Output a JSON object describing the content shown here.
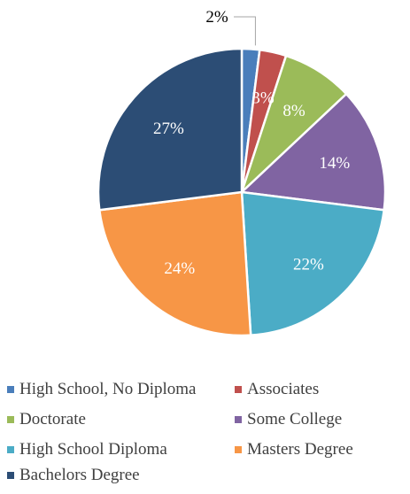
{
  "chart_data": {
    "type": "pie",
    "slices": [
      {
        "label": "High School, No Diploma",
        "value": 2,
        "value_label": "2%",
        "color": "#4a7ebb"
      },
      {
        "label": "Associates",
        "value": 3,
        "value_label": "3%",
        "color": "#c0504d"
      },
      {
        "label": "Doctorate",
        "value": 8,
        "value_label": "8%",
        "color": "#9bbb59"
      },
      {
        "label": "Some College",
        "value": 14,
        "value_label": "14%",
        "color": "#8064a2"
      },
      {
        "label": "High School Diploma",
        "value": 22,
        "value_label": "22%",
        "color": "#4bacc6"
      },
      {
        "label": "Masters Degree",
        "value": 24,
        "value_label": "24%",
        "color": "#f79646"
      },
      {
        "label": "Bachelors Degree",
        "value": 27,
        "value_label": "27%",
        "color": "#2c4d75"
      }
    ],
    "legend_position": "bottom"
  }
}
